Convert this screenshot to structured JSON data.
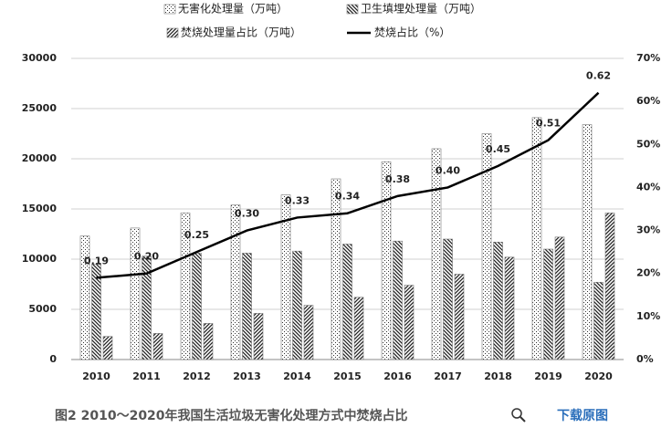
{
  "chart_data": {
    "type": "bar",
    "categories": [
      "2010",
      "2011",
      "2012",
      "2013",
      "2014",
      "2015",
      "2016",
      "2017",
      "2018",
      "2019",
      "2020"
    ],
    "series": [
      {
        "name": "无害化处理量（万吨）",
        "color": "#333333",
        "pattern": "dots",
        "values": [
          12300,
          13100,
          14600,
          15400,
          16400,
          18000,
          19700,
          21000,
          22500,
          24100,
          23400
        ]
      },
      {
        "name": "卫生填埋处理量（万吨）",
        "color": "#222222",
        "pattern": "backslash",
        "values": [
          9500,
          10300,
          10600,
          10600,
          10800,
          11500,
          11800,
          12000,
          11700,
          11000,
          7700
        ]
      },
      {
        "name": "焚烧处理量占比（万吨）",
        "color": "#222222",
        "pattern": "slash",
        "values": [
          2300,
          2600,
          3600,
          4600,
          5400,
          6200,
          7400,
          8500,
          10200,
          12200,
          14600
        ]
      },
      {
        "name": "焚烧占比（%）",
        "type": "line",
        "axis": "y2",
        "color": "#000000",
        "values": [
          19,
          20,
          25,
          30,
          33,
          34,
          38,
          40,
          45,
          51,
          62
        ],
        "value_labels": [
          "0.19",
          "0.20",
          "0.25",
          "0.30",
          "0.33",
          "0.34",
          "0.38",
          "0.40",
          "0.45",
          "0.51",
          "0.62"
        ]
      }
    ],
    "ylim": [
      0,
      30000
    ],
    "yticks": [
      0,
      5000,
      10000,
      15000,
      20000,
      25000,
      30000
    ],
    "y2lim": [
      0,
      70
    ],
    "y2ticks": [
      {
        "value": 0,
        "label": "0%"
      },
      {
        "value": 10,
        "label": "10%"
      },
      {
        "value": 20,
        "label": "20%"
      },
      {
        "value": 30,
        "label": "30%"
      },
      {
        "value": 40,
        "label": "40%"
      },
      {
        "value": 50,
        "label": "50%"
      },
      {
        "value": 60,
        "label": "60%"
      },
      {
        "value": 70,
        "label": "70%"
      }
    ],
    "grid": true
  },
  "caption": "图2 2010～2020年我国生活垃圾无害化处理方式中焚烧占比",
  "download_link": "下载原图"
}
